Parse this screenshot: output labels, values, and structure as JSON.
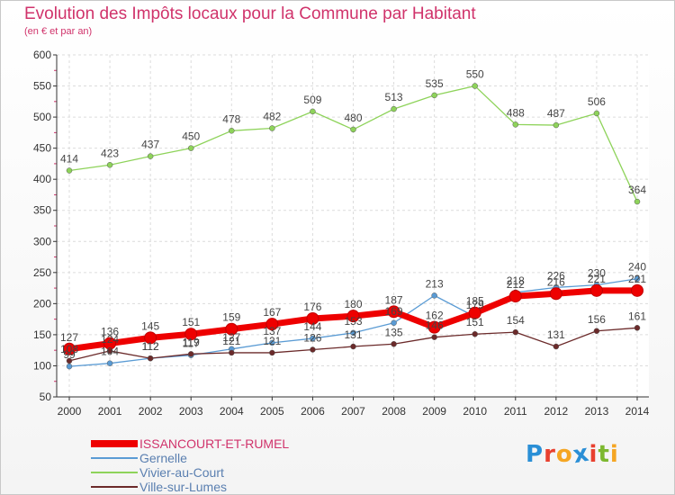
{
  "title": "Evolution des Impôts locaux pour la Commune par Habitant",
  "subtitle": "(en € et par an)",
  "logo": {
    "text": "Proxiti",
    "letters": [
      {
        "ch": "P",
        "color": "#2a8fd6"
      },
      {
        "ch": "r",
        "color": "#e8402f"
      },
      {
        "ch": "o",
        "color": "#f5a623"
      },
      {
        "ch": "x",
        "color": "#2a8fd6"
      },
      {
        "ch": "i",
        "color": "#e8402f"
      },
      {
        "ch": "t",
        "color": "#7cb82f"
      },
      {
        "ch": "i",
        "color": "#f5a623"
      }
    ]
  },
  "chart_data": {
    "type": "line",
    "title": "Evolution des Impôts locaux pour la Commune par Habitant",
    "subtitle": "(en € et par an)",
    "xlabel": "",
    "ylabel": "",
    "x": [
      "2000",
      "2001",
      "2002",
      "2003",
      "2004",
      "2005",
      "2006",
      "2007",
      "2008",
      "2009",
      "2010",
      "2011",
      "2012",
      "2013",
      "2014"
    ],
    "ylim": [
      50,
      600
    ],
    "yticks": [
      50,
      100,
      150,
      200,
      250,
      300,
      350,
      400,
      450,
      500,
      550,
      600
    ],
    "grid": true,
    "legend": "bottom-left",
    "series": [
      {
        "name": "ISSANCOURT-ET-RUMEL",
        "color": "#ee0000",
        "style": "thick",
        "values": [
          127,
          136,
          145,
          151,
          159,
          167,
          176,
          180,
          187,
          162,
          185,
          212,
          216,
          221,
          221
        ],
        "labels": [
          "127",
          "136",
          "145",
          "151",
          "159",
          "167",
          "176",
          "180",
          "187",
          "162",
          "185",
          "212",
          "216",
          "221",
          "221"
        ]
      },
      {
        "name": "Gernelle",
        "color": "#5a9bd4",
        "style": "thin",
        "values": [
          99,
          104,
          112,
          117,
          127,
          137,
          144,
          153,
          169,
          213,
          179,
          218,
          226,
          230,
          240
        ],
        "labels": [
          "99",
          "104",
          "112",
          "117",
          "127",
          "137",
          "144",
          "153",
          "169",
          "213",
          "179",
          "218",
          "226",
          "230",
          "240"
        ]
      },
      {
        "name": "Vivier-au-Court",
        "color": "#8ed35a",
        "style": "thin",
        "values": [
          414,
          423,
          437,
          450,
          478,
          482,
          509,
          480,
          513,
          535,
          550,
          488,
          487,
          506,
          364
        ],
        "labels": [
          "414",
          "423",
          "437",
          "450",
          "478",
          "482",
          "509",
          "480",
          "513",
          "535",
          "550",
          "488",
          "487",
          "506",
          "364"
        ]
      },
      {
        "name": "Ville-sur-Lumes",
        "color": "#6b2a2a",
        "style": "thin",
        "values": [
          108,
          124,
          112,
          119,
          121,
          121,
          126,
          131,
          135,
          146,
          151,
          154,
          131,
          156,
          161
        ],
        "labels": [
          "108",
          "124",
          "112",
          "119",
          "121",
          "121",
          "126",
          "131",
          "135",
          "146",
          "151",
          "154",
          "131",
          "156",
          "161"
        ]
      }
    ]
  }
}
